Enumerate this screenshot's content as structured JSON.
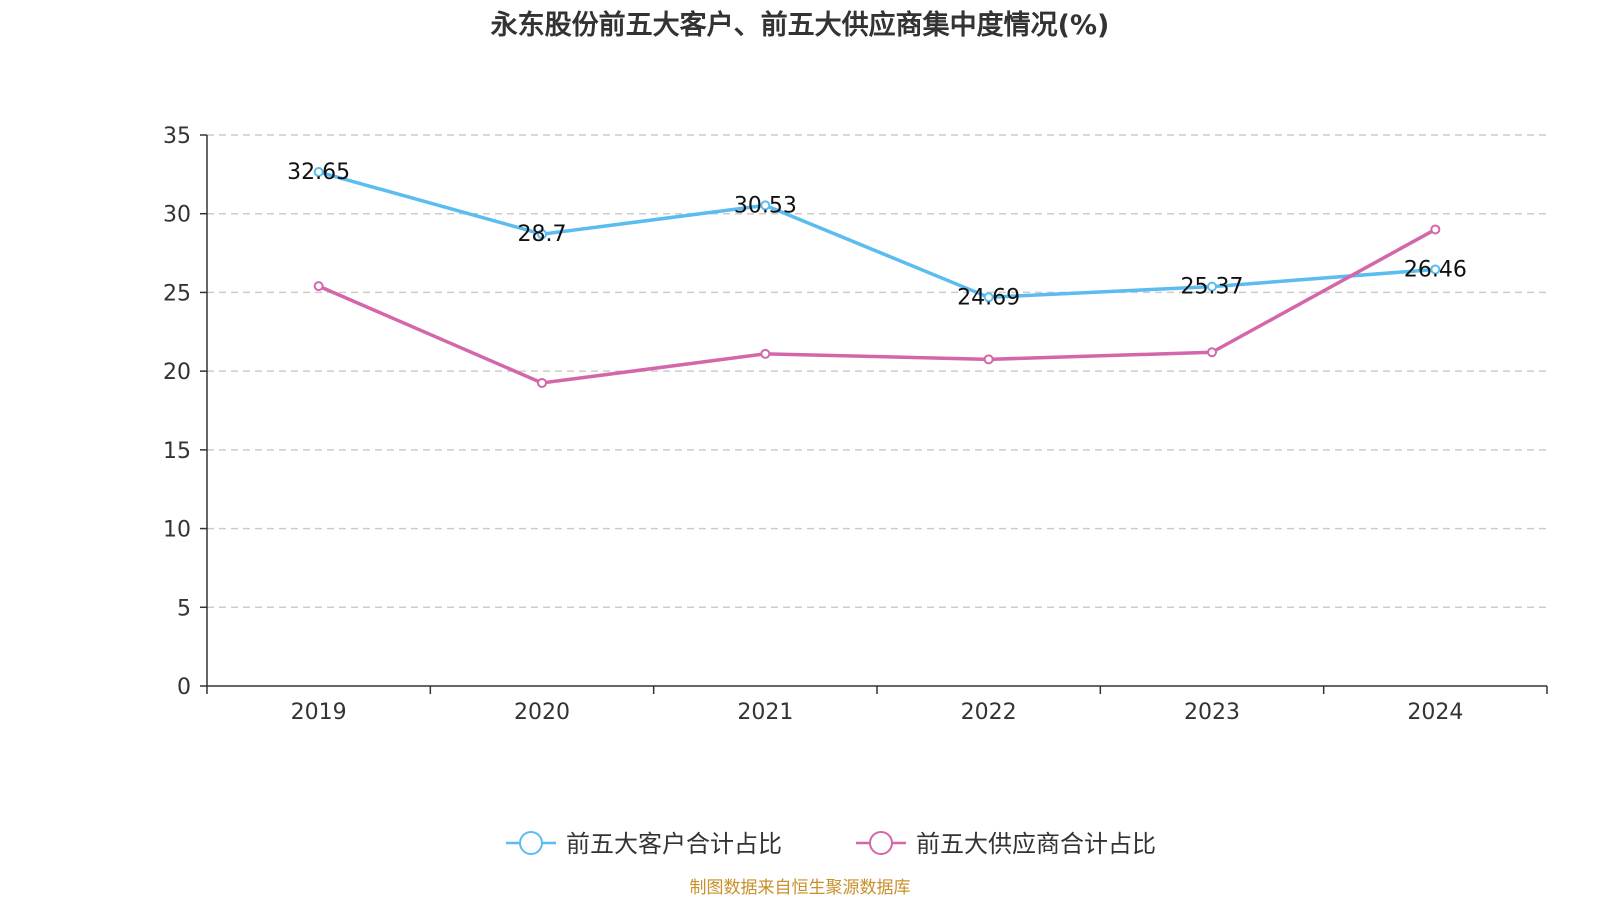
{
  "chart_data": {
    "type": "line",
    "title": "永东股份前五大客户、前五大供应商集中度情况(%)",
    "categories": [
      "2019",
      "2020",
      "2021",
      "2022",
      "2023",
      "2024"
    ],
    "ylim": [
      0,
      35
    ],
    "yticks": [
      0,
      5,
      10,
      15,
      20,
      25,
      30,
      35
    ],
    "grid": true,
    "legend_position": "bottom",
    "series": [
      {
        "name": "前五大客户合计占比",
        "color": "#5bbcf0",
        "values": [
          32.65,
          28.7,
          30.53,
          24.69,
          25.37,
          26.46
        ],
        "labels": [
          "32.65",
          "28.7",
          "30.53",
          "24.69",
          "25.37",
          "26.46"
        ]
      },
      {
        "name": "前五大供应商合计占比",
        "color": "#d466aa",
        "values": [
          25.4,
          19.25,
          21.1,
          20.75,
          21.2,
          29.0
        ]
      }
    ],
    "source": "制图数据来自恒生聚源数据库"
  }
}
